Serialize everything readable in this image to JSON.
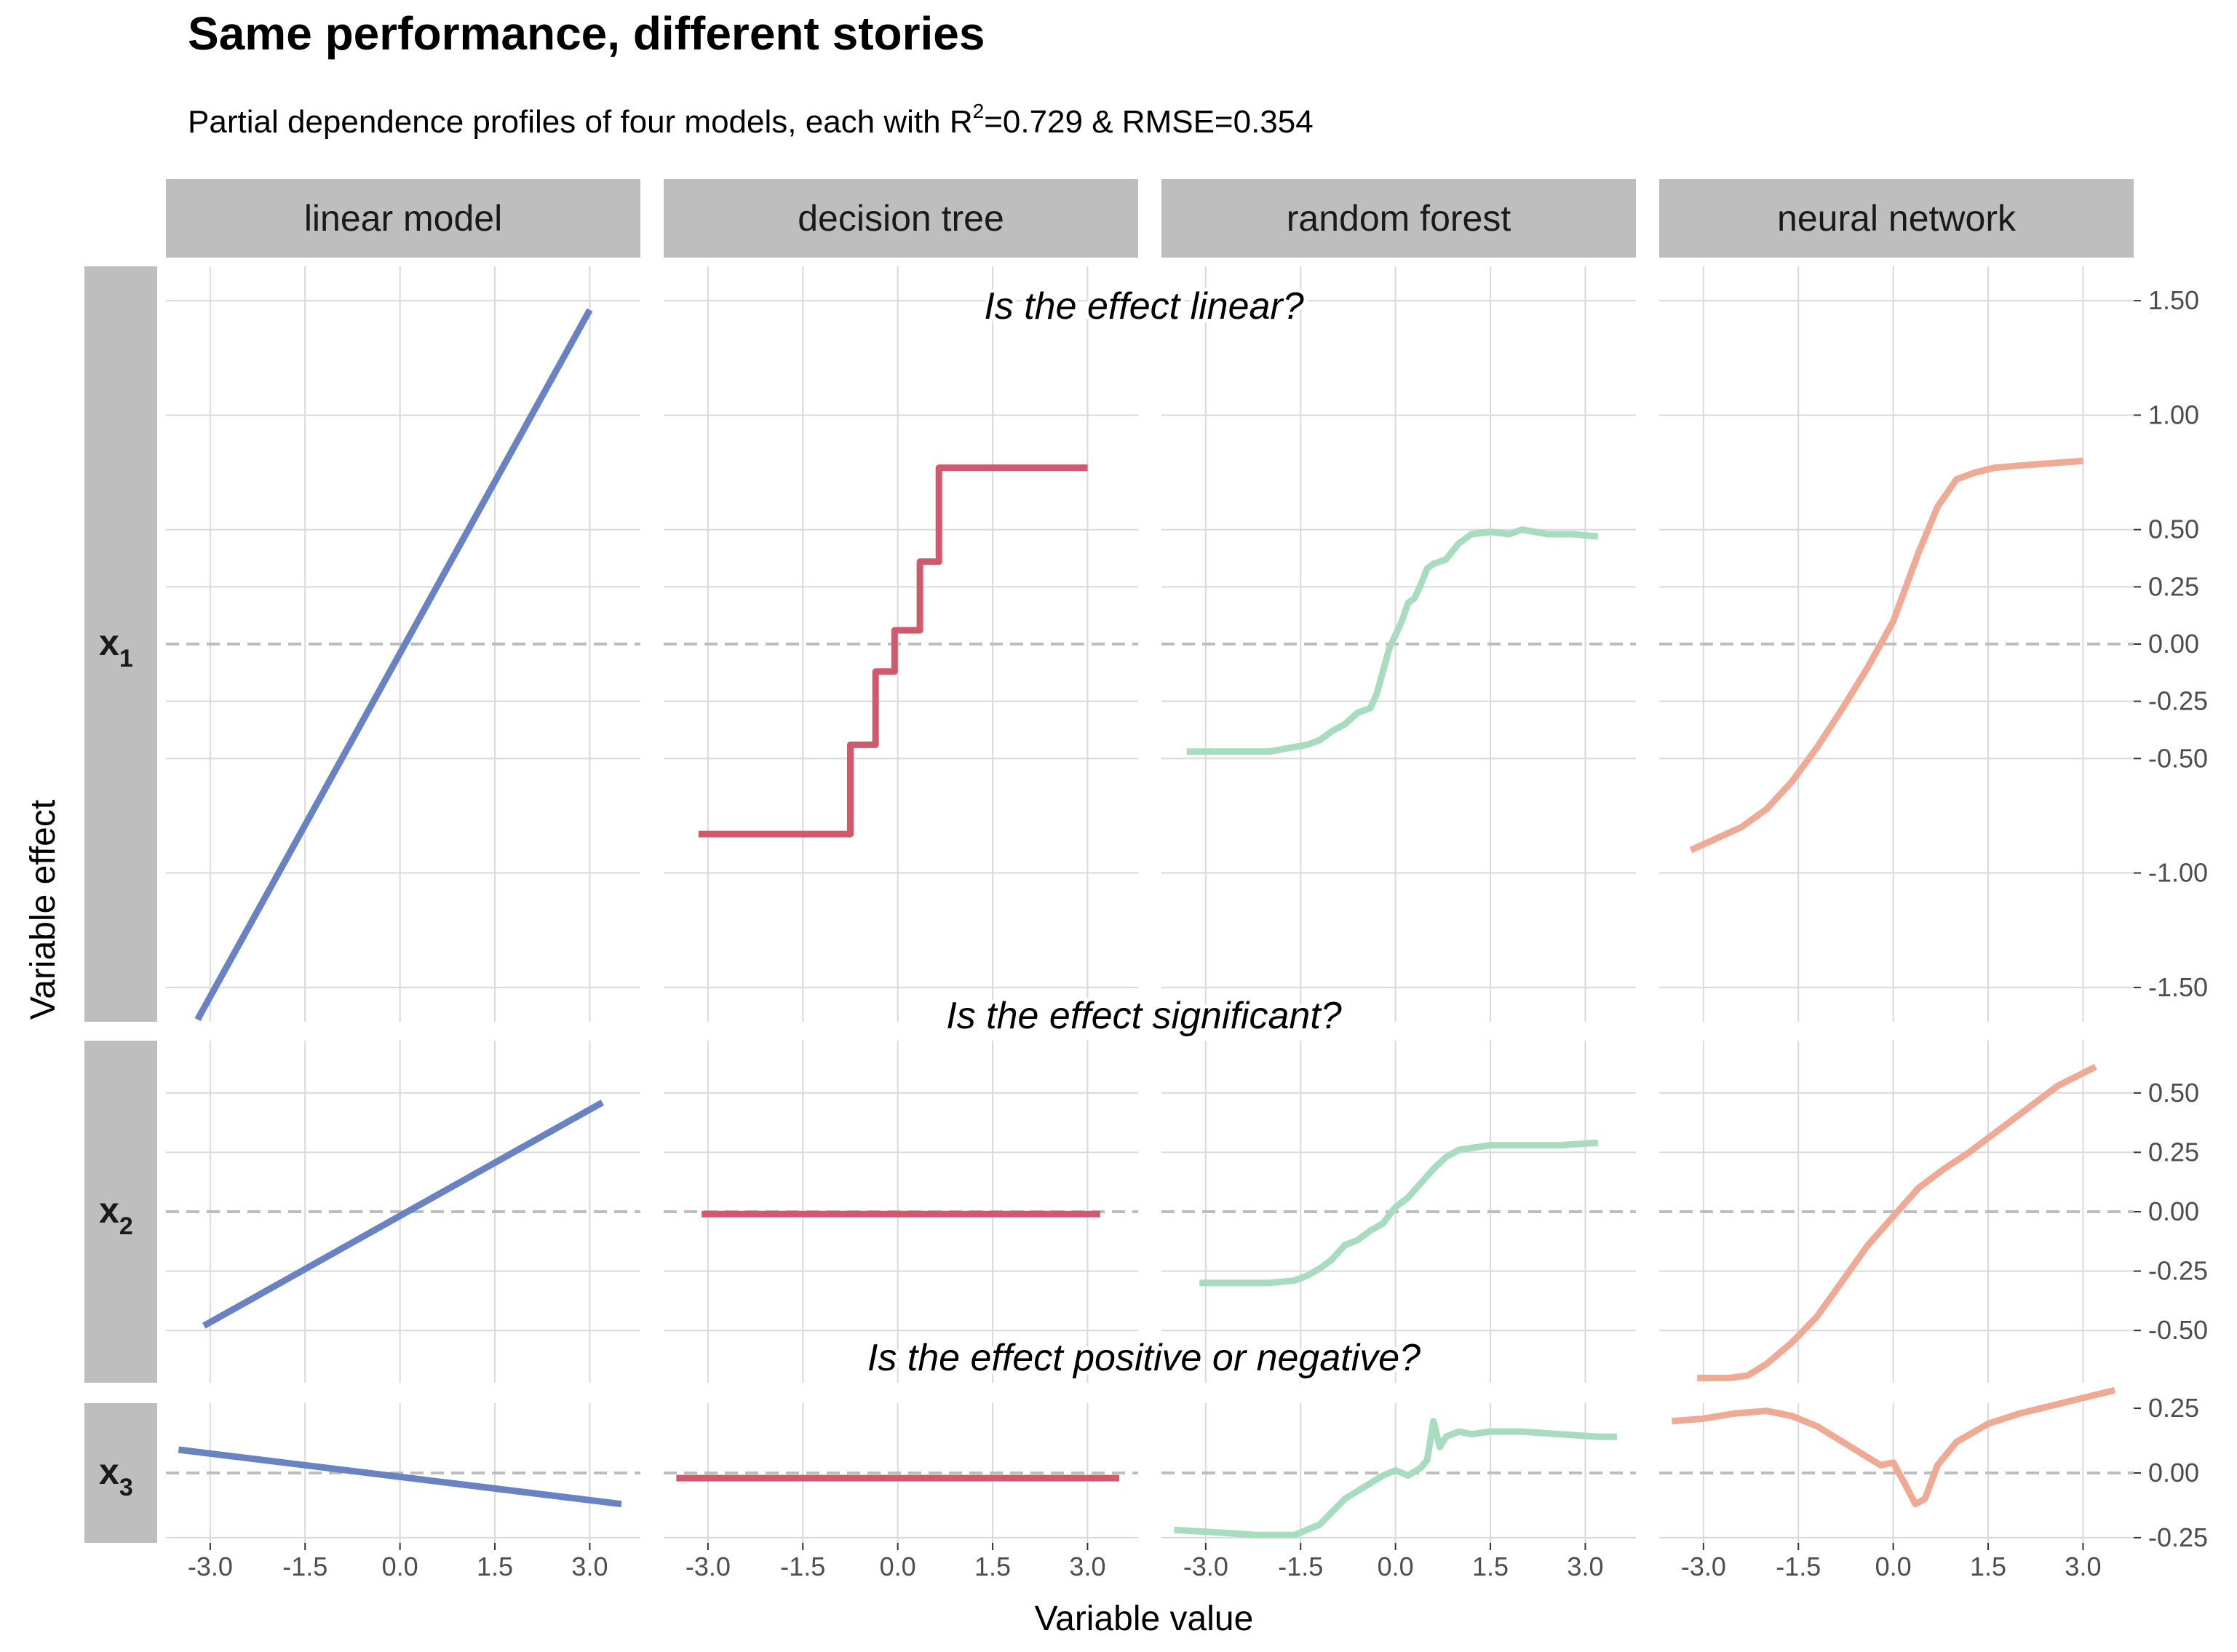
{
  "title": "Same performance, different stories",
  "subtitle": {
    "before": "Partial dependence profiles of four models, each with R",
    "sup": "2",
    "after": "=0.729 & RMSE=0.354"
  },
  "x_axis_title": "Variable value",
  "y_axis_title": "Variable effect",
  "questions": [
    "Is the effect linear?",
    "Is the effect significant?",
    "Is the effect positive or negative?"
  ],
  "colors": {
    "linear model": "#6882c2",
    "decision tree": "#d0596e",
    "random forest": "#a7dcbf",
    "neural network": "#eeaa94",
    "strip_bg": "#bebebe",
    "grid": "#d9d9d9",
    "zero_line": "#bdbdbd"
  },
  "chart_data": {
    "type": "line",
    "columns": [
      "linear model",
      "decision tree",
      "random forest",
      "neural network"
    ],
    "rows": [
      {
        "label": "x",
        "sub": "1"
      },
      {
        "label": "x",
        "sub": "2"
      },
      {
        "label": "x",
        "sub": "3"
      }
    ],
    "x_ticks": [
      "-3.0",
      "-1.5",
      "0.0",
      "1.5",
      "3.0"
    ],
    "x_tick_values": [
      -3,
      -1.5,
      0,
      1.5,
      3
    ],
    "xlim": [
      -3.7,
      3.8
    ],
    "y_ticks": [
      [
        "1.50",
        "1.00",
        "0.50",
        "0.25",
        "0.00",
        "-0.25",
        "-0.50",
        "-1.00",
        "-1.50"
      ],
      [
        "0.50",
        "0.25",
        "0.00",
        "-0.25",
        "-0.50"
      ],
      [
        "0.25",
        "0.00",
        "-0.25"
      ]
    ],
    "y_tick_values": [
      [
        1.5,
        1.0,
        0.5,
        0.25,
        0.0,
        -0.25,
        -0.5,
        -1.0,
        -1.5
      ],
      [
        0.5,
        0.25,
        0.0,
        -0.25,
        -0.5
      ],
      [
        0.25,
        0.0,
        -0.25
      ]
    ],
    "ylim": [
      [
        -1.65,
        1.65
      ],
      [
        -0.72,
        0.72
      ],
      [
        -0.27,
        0.27
      ]
    ],
    "series": [
      [
        {
          "model": "linear model",
          "x": [
            -3.2,
            3.0
          ],
          "y": [
            -1.64,
            1.46
          ]
        },
        {
          "model": "decision tree",
          "x": [
            -3.15,
            -0.75,
            -0.75,
            -0.35,
            -0.35,
            -0.05,
            -0.05,
            0.35,
            0.35,
            0.65,
            0.65,
            3.0
          ],
          "y": [
            -0.83,
            -0.83,
            -0.44,
            -0.44,
            -0.12,
            -0.12,
            0.06,
            0.06,
            0.36,
            0.36,
            0.77,
            0.77
          ]
        },
        {
          "model": "random forest",
          "x": [
            -3.3,
            -2.6,
            -2.0,
            -1.6,
            -1.4,
            -1.2,
            -1.0,
            -0.8,
            -0.6,
            -0.4,
            -0.3,
            -0.2,
            -0.1,
            0.0,
            0.1,
            0.2,
            0.3,
            0.4,
            0.5,
            0.6,
            0.8,
            1.0,
            1.2,
            1.5,
            1.8,
            2.0,
            2.4,
            2.8,
            3.2
          ],
          "y": [
            -0.47,
            -0.47,
            -0.47,
            -0.45,
            -0.44,
            -0.42,
            -0.38,
            -0.35,
            -0.3,
            -0.28,
            -0.22,
            -0.12,
            -0.02,
            0.04,
            0.1,
            0.18,
            0.2,
            0.26,
            0.33,
            0.35,
            0.37,
            0.44,
            0.48,
            0.49,
            0.48,
            0.5,
            0.48,
            0.48,
            0.47
          ]
        },
        {
          "model": "neural network",
          "x": [
            -3.2,
            -2.8,
            -2.4,
            -2.0,
            -1.6,
            -1.2,
            -0.8,
            -0.4,
            0.0,
            0.4,
            0.7,
            1.0,
            1.3,
            1.6,
            2.0,
            2.5,
            3.0
          ],
          "y": [
            -0.9,
            -0.85,
            -0.8,
            -0.72,
            -0.6,
            -0.45,
            -0.28,
            -0.1,
            0.1,
            0.4,
            0.6,
            0.72,
            0.75,
            0.77,
            0.78,
            0.79,
            0.8
          ]
        }
      ],
      [
        {
          "model": "linear model",
          "x": [
            -3.1,
            3.2
          ],
          "y": [
            -0.48,
            0.46
          ]
        },
        {
          "model": "decision tree",
          "x": [
            -3.1,
            3.2
          ],
          "y": [
            -0.01,
            -0.01
          ]
        },
        {
          "model": "random forest",
          "x": [
            -3.1,
            -2.6,
            -2.0,
            -1.6,
            -1.4,
            -1.2,
            -1.0,
            -0.8,
            -0.6,
            -0.4,
            -0.2,
            0.0,
            0.2,
            0.4,
            0.6,
            0.8,
            1.0,
            1.5,
            2.0,
            2.6,
            3.2
          ],
          "y": [
            -0.3,
            -0.3,
            -0.3,
            -0.29,
            -0.27,
            -0.24,
            -0.2,
            -0.14,
            -0.12,
            -0.08,
            -0.05,
            0.02,
            0.06,
            0.12,
            0.18,
            0.23,
            0.26,
            0.28,
            0.28,
            0.28,
            0.29
          ]
        },
        {
          "model": "neural network",
          "x": [
            -3.1,
            -2.6,
            -2.3,
            -2.0,
            -1.6,
            -1.2,
            -0.8,
            -0.4,
            0.0,
            0.4,
            0.8,
            1.2,
            1.6,
            2.0,
            2.6,
            3.2
          ],
          "y": [
            -0.7,
            -0.7,
            -0.69,
            -0.64,
            -0.55,
            -0.44,
            -0.29,
            -0.14,
            -0.02,
            0.1,
            0.18,
            0.25,
            0.33,
            0.41,
            0.53,
            0.61
          ]
        }
      ],
      [
        {
          "model": "linear model",
          "x": [
            -3.5,
            3.5
          ],
          "y": [
            0.09,
            -0.12
          ]
        },
        {
          "model": "decision tree",
          "x": [
            -3.5,
            3.5
          ],
          "y": [
            -0.02,
            -0.02
          ]
        },
        {
          "model": "random forest",
          "x": [
            -3.5,
            -2.8,
            -2.2,
            -1.6,
            -1.4,
            -1.2,
            -1.0,
            -0.8,
            -0.6,
            -0.4,
            -0.2,
            0.0,
            0.2,
            0.4,
            0.5,
            0.6,
            0.7,
            0.8,
            1.0,
            1.2,
            1.5,
            2.0,
            2.6,
            3.2,
            3.5
          ],
          "y": [
            -0.22,
            -0.23,
            -0.24,
            -0.24,
            -0.22,
            -0.2,
            -0.15,
            -0.1,
            -0.07,
            -0.04,
            -0.01,
            0.01,
            -0.01,
            0.02,
            0.05,
            0.2,
            0.1,
            0.14,
            0.16,
            0.15,
            0.16,
            0.16,
            0.15,
            0.14,
            0.14
          ]
        },
        {
          "model": "neural network",
          "x": [
            -3.5,
            -3.0,
            -2.5,
            -2.0,
            -1.6,
            -1.2,
            -0.8,
            -0.4,
            -0.2,
            0.0,
            0.2,
            0.35,
            0.5,
            0.7,
            1.0,
            1.5,
            2.0,
            2.5,
            3.0,
            3.5
          ],
          "y": [
            0.2,
            0.21,
            0.23,
            0.24,
            0.22,
            0.18,
            0.12,
            0.06,
            0.03,
            0.04,
            -0.05,
            -0.12,
            -0.1,
            0.03,
            0.12,
            0.19,
            0.23,
            0.26,
            0.29,
            0.32
          ]
        }
      ]
    ]
  }
}
